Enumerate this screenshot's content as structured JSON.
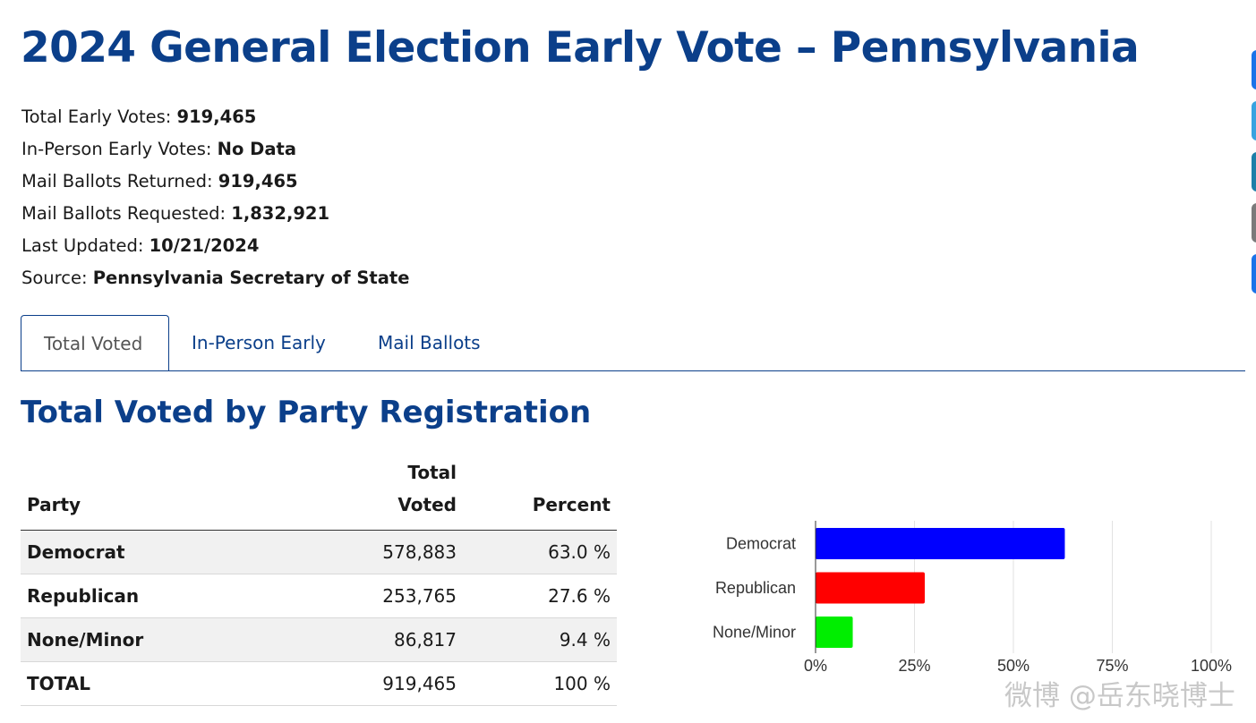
{
  "page": {
    "title": "2024 General Election Early Vote – Pennsylvania"
  },
  "stats": [
    {
      "label": "Total Early Votes:",
      "value": "919,465"
    },
    {
      "label": "In-Person Early Votes:",
      "value": "No Data"
    },
    {
      "label": "Mail Ballots Returned:",
      "value": "919,465"
    },
    {
      "label": "Mail Ballots Requested:",
      "value": "1,832,921"
    },
    {
      "label": "Last Updated:",
      "value": "10/21/2024"
    },
    {
      "label": "Source:",
      "value": "Pennsylvania Secretary of State"
    }
  ],
  "tabs": [
    {
      "label": "Total Voted",
      "active": true
    },
    {
      "label": "In-Person Early",
      "active": false
    },
    {
      "label": "Mail Ballots",
      "active": false
    }
  ],
  "section": {
    "title": "Total Voted by Party Registration"
  },
  "table": {
    "headers": {
      "party": "Party",
      "voted_line1": "Total",
      "voted_line2": "Voted",
      "percent": "Percent"
    },
    "rows": [
      {
        "party": "Democrat",
        "voted": "578,883",
        "percent": "63.0 %"
      },
      {
        "party": "Republican",
        "voted": "253,765",
        "percent": "27.6 %"
      },
      {
        "party": "None/Minor",
        "voted": "86,817",
        "percent": "9.4 %"
      }
    ],
    "total": {
      "party": "TOTAL",
      "voted": "919,465",
      "percent": "100 %"
    }
  },
  "chart_data": {
    "type": "bar",
    "orientation": "horizontal",
    "categories": [
      "Democrat",
      "Republican",
      "None/Minor"
    ],
    "values": [
      63.0,
      27.6,
      9.4
    ],
    "colors": [
      "#0000ff",
      "#ff0000",
      "#00ee00"
    ],
    "xlim": [
      0,
      100
    ],
    "xticks": [
      "0%",
      "25%",
      "50%",
      "75%",
      "100%"
    ],
    "grid": true,
    "title": "",
    "xlabel": "",
    "ylabel": ""
  },
  "side_tabs": {
    "colors": [
      "#1a73e8",
      "#38a3e0",
      "#1d7fa8",
      "#7a7a7a",
      "#1a73e8"
    ]
  },
  "watermark": "微博 @岳东晓博士",
  "colors": {
    "brand": "#0b3f8a"
  }
}
